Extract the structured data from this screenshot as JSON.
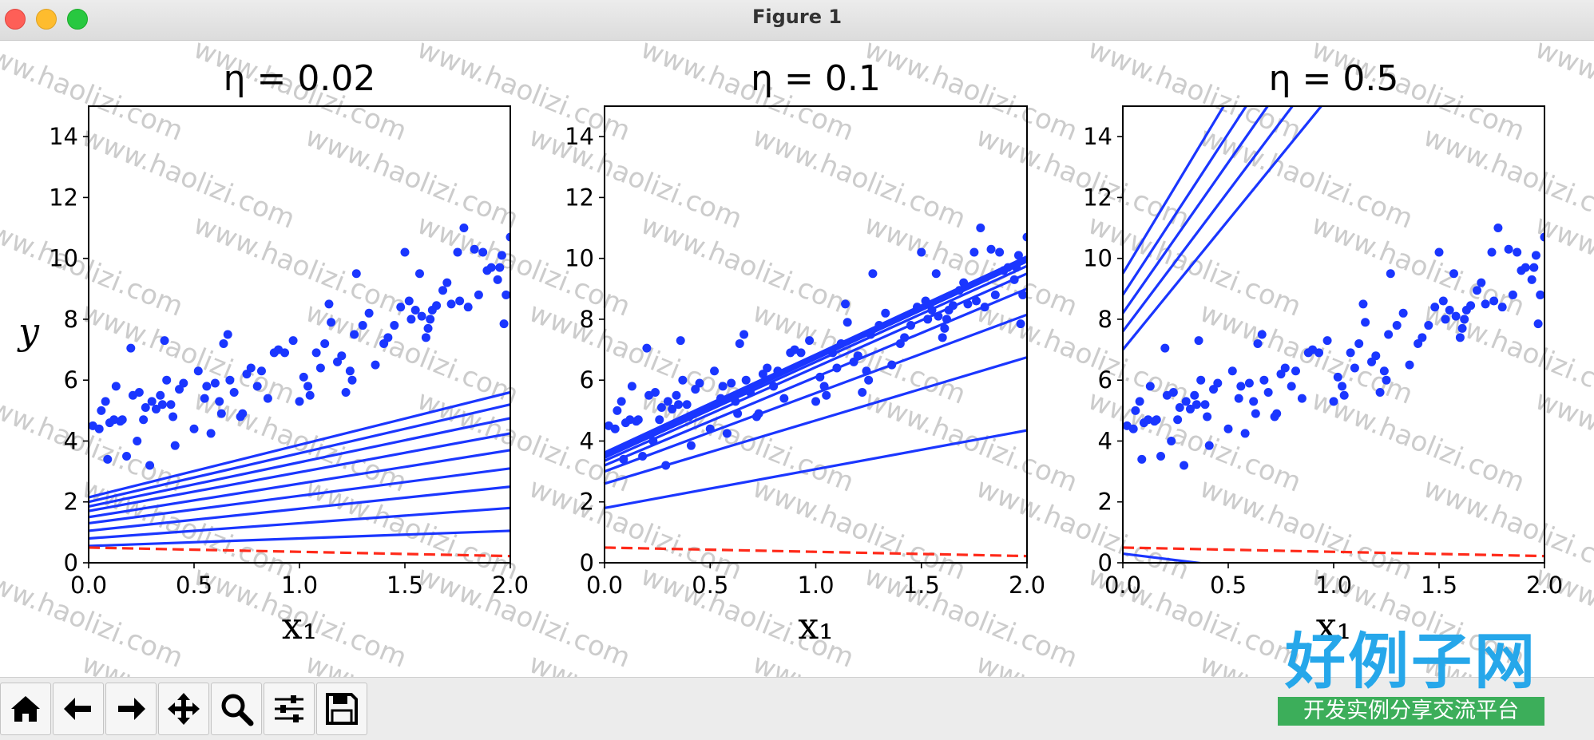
{
  "window": {
    "title": "Figure 1"
  },
  "chart_data": [
    {
      "type": "scatter+line",
      "title": "η = 0.02",
      "xlabel": "x₁",
      "ylabel": "y",
      "xlim": [
        0,
        2.0
      ],
      "ylim": [
        0,
        15
      ],
      "xticks": [
        "0.0",
        "0.5",
        "1.0",
        "1.5",
        "2.0"
      ],
      "yticks": [
        "0",
        "2",
        "4",
        "6",
        "8",
        "10",
        "12",
        "14"
      ],
      "lines": [
        {
          "y0": 0.55,
          "y1": 1.05
        },
        {
          "y0": 0.8,
          "y1": 1.8
        },
        {
          "y0": 1.05,
          "y1": 2.5
        },
        {
          "y0": 1.3,
          "y1": 3.1
        },
        {
          "y0": 1.5,
          "y1": 3.7
        },
        {
          "y0": 1.7,
          "y1": 4.25
        },
        {
          "y0": 1.85,
          "y1": 4.75
        },
        {
          "y0": 2.0,
          "y1": 5.2
        },
        {
          "y0": 2.15,
          "y1": 5.6
        }
      ],
      "dashed_line": {
        "y0": 0.5,
        "y1": 0.22
      }
    },
    {
      "type": "scatter+line",
      "title": "η = 0.1",
      "xlabel": "x₁",
      "xlim": [
        0,
        2.0
      ],
      "ylim": [
        0,
        15
      ],
      "xticks": [
        "0.0",
        "0.5",
        "1.0",
        "1.5",
        "2.0"
      ],
      "yticks": [
        "0",
        "2",
        "4",
        "6",
        "8",
        "10",
        "12",
        "14"
      ],
      "lines": [
        {
          "y0": 1.8,
          "y1": 4.35
        },
        {
          "y0": 2.6,
          "y1": 6.75
        },
        {
          "y0": 3.0,
          "y1": 8.15
        },
        {
          "y0": 3.2,
          "y1": 9.0
        },
        {
          "y0": 3.35,
          "y1": 9.5
        },
        {
          "y0": 3.45,
          "y1": 9.75
        },
        {
          "y0": 3.5,
          "y1": 9.9
        },
        {
          "y0": 3.55,
          "y1": 9.98
        },
        {
          "y0": 3.6,
          "y1": 10.02
        },
        {
          "y0": 3.62,
          "y1": 10.06
        }
      ],
      "dashed_line": {
        "y0": 0.5,
        "y1": 0.22
      }
    },
    {
      "type": "scatter+line",
      "title": "η = 0.5",
      "xlabel": "x₁",
      "xlim": [
        0,
        2.0
      ],
      "ylim": [
        0,
        15
      ],
      "xticks": [
        "0.0",
        "0.5",
        "1.0",
        "1.5",
        "2.0"
      ],
      "yticks": [
        "0",
        "2",
        "4",
        "6",
        "8",
        "10",
        "12",
        "14"
      ],
      "lines": [
        {
          "y0": 0.3,
          "y1": -1.4
        },
        {
          "y0": 7.0,
          "y1": 24.0
        },
        {
          "y0": 7.6,
          "y1": 26.0
        },
        {
          "y0": 8.2,
          "y1": 28.0
        },
        {
          "y0": 8.8,
          "y1": 30.0
        },
        {
          "y0": 9.5,
          "y1": 32.5
        }
      ],
      "dashed_line": {
        "y0": 0.5,
        "y1": 0.22
      }
    }
  ],
  "scatter_points": [
    [
      0.02,
      4.5
    ],
    [
      0.05,
      4.4
    ],
    [
      0.06,
      5.0
    ],
    [
      0.08,
      5.3
    ],
    [
      0.1,
      4.6
    ],
    [
      0.09,
      3.4
    ],
    [
      0.12,
      4.7
    ],
    [
      0.13,
      5.8
    ],
    [
      0.15,
      4.65
    ],
    [
      0.16,
      4.7
    ],
    [
      0.18,
      3.5
    ],
    [
      0.2,
      7.05
    ],
    [
      0.21,
      5.5
    ],
    [
      0.23,
      4.0
    ],
    [
      0.24,
      5.6
    ],
    [
      0.26,
      4.7
    ],
    [
      0.27,
      5.1
    ],
    [
      0.29,
      3.2
    ],
    [
      0.3,
      5.3
    ],
    [
      0.32,
      5.05
    ],
    [
      0.34,
      5.5
    ],
    [
      0.35,
      5.2
    ],
    [
      0.36,
      7.3
    ],
    [
      0.37,
      6.0
    ],
    [
      0.39,
      5.2
    ],
    [
      0.4,
      4.8
    ],
    [
      0.41,
      3.85
    ],
    [
      0.43,
      5.7
    ],
    [
      0.45,
      5.9
    ],
    [
      0.5,
      4.4
    ],
    [
      0.52,
      6.3
    ],
    [
      0.55,
      5.4
    ],
    [
      0.56,
      5.8
    ],
    [
      0.58,
      4.25
    ],
    [
      0.6,
      5.9
    ],
    [
      0.62,
      5.3
    ],
    [
      0.63,
      4.9
    ],
    [
      0.64,
      7.2
    ],
    [
      0.66,
      7.5
    ],
    [
      0.67,
      6.0
    ],
    [
      0.69,
      5.6
    ],
    [
      0.72,
      4.8
    ],
    [
      0.73,
      4.9
    ],
    [
      0.75,
      6.2
    ],
    [
      0.77,
      6.4
    ],
    [
      0.8,
      5.8
    ],
    [
      0.82,
      6.3
    ],
    [
      0.85,
      5.4
    ],
    [
      0.88,
      6.9
    ],
    [
      0.9,
      7.0
    ],
    [
      0.93,
      6.9
    ],
    [
      0.97,
      7.3
    ],
    [
      1.0,
      5.3
    ],
    [
      1.02,
      6.1
    ],
    [
      1.04,
      5.8
    ],
    [
      1.05,
      5.5
    ],
    [
      1.08,
      6.9
    ],
    [
      1.1,
      6.4
    ],
    [
      1.12,
      7.2
    ],
    [
      1.14,
      8.5
    ],
    [
      1.15,
      7.9
    ],
    [
      1.18,
      6.6
    ],
    [
      1.2,
      6.8
    ],
    [
      1.22,
      5.6
    ],
    [
      1.24,
      6.3
    ],
    [
      1.25,
      6.0
    ],
    [
      1.26,
      7.5
    ],
    [
      1.27,
      9.5
    ],
    [
      1.3,
      7.8
    ],
    [
      1.33,
      8.2
    ],
    [
      1.36,
      6.5
    ],
    [
      1.4,
      7.2
    ],
    [
      1.42,
      7.4
    ],
    [
      1.45,
      7.8
    ],
    [
      1.48,
      8.4
    ],
    [
      1.5,
      10.2
    ],
    [
      1.52,
      8.6
    ],
    [
      1.53,
      8.0
    ],
    [
      1.55,
      8.3
    ],
    [
      1.57,
      9.5
    ],
    [
      1.58,
      8.1
    ],
    [
      1.6,
      7.4
    ],
    [
      1.61,
      7.7
    ],
    [
      1.62,
      8.0
    ],
    [
      1.63,
      8.3
    ],
    [
      1.65,
      8.45
    ],
    [
      1.68,
      8.95
    ],
    [
      1.7,
      9.2
    ],
    [
      1.72,
      8.5
    ],
    [
      1.75,
      10.2
    ],
    [
      1.76,
      8.6
    ],
    [
      1.78,
      11.0
    ],
    [
      1.8,
      8.4
    ],
    [
      1.83,
      10.3
    ],
    [
      1.85,
      8.8
    ],
    [
      1.87,
      10.2
    ],
    [
      1.89,
      9.6
    ],
    [
      1.91,
      9.7
    ],
    [
      1.94,
      9.3
    ],
    [
      1.95,
      9.7
    ],
    [
      1.96,
      10.1
    ],
    [
      1.97,
      7.85
    ],
    [
      1.98,
      8.8
    ],
    [
      2.0,
      10.7
    ]
  ],
  "toolbar": {
    "buttons": [
      {
        "name": "home-button",
        "icon": "home-icon"
      },
      {
        "name": "back-button",
        "icon": "arrow-left-icon"
      },
      {
        "name": "forward-button",
        "icon": "arrow-right-icon"
      },
      {
        "name": "pan-button",
        "icon": "move-icon"
      },
      {
        "name": "zoom-button",
        "icon": "magnifier-icon"
      },
      {
        "name": "configure-subplots-button",
        "icon": "sliders-icon"
      },
      {
        "name": "save-button",
        "icon": "floppy-disk-icon"
      }
    ]
  },
  "watermark": {
    "text": "www.haolizi.com"
  },
  "logo": {
    "main": "好例子网",
    "sub": "开发实例分享交流平台"
  },
  "colors": {
    "points": "#1a36ff",
    "lines": "#1a36ff",
    "dashed": "#ff2a1a",
    "axes": "#000000"
  }
}
